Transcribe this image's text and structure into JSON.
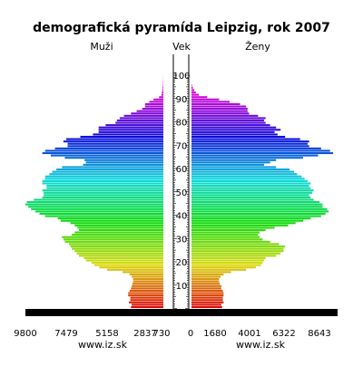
{
  "chart_data": {
    "type": "bar",
    "orientation": "horizontal-population-pyramid",
    "title": "demografická pyramída Leipzig, rok 2007",
    "left_label": "Muži",
    "center_label": "Vek",
    "right_label": "Ženy",
    "age_ticks": [
      "10",
      "20",
      "30",
      "40",
      "50",
      "60",
      "70",
      "80",
      "90",
      "100"
    ],
    "left_ticks": [
      "9800",
      "7479",
      "5158",
      "2837",
      "730"
    ],
    "right_ticks": [
      "0",
      "1680",
      "4001",
      "6322",
      "8643"
    ],
    "left_source": "www.iz.sk",
    "right_source": "www.iz.sk",
    "men_range": [
      0,
      9800
    ],
    "women_range": [
      0,
      9800
    ],
    "ages": [
      0,
      1,
      2,
      3,
      4,
      5,
      6,
      7,
      8,
      9,
      10,
      11,
      12,
      13,
      14,
      15,
      16,
      17,
      18,
      19,
      20,
      21,
      22,
      23,
      24,
      25,
      26,
      27,
      28,
      29,
      30,
      31,
      32,
      33,
      34,
      35,
      36,
      37,
      38,
      39,
      40,
      41,
      42,
      43,
      44,
      45,
      46,
      47,
      48,
      49,
      50,
      51,
      52,
      53,
      54,
      55,
      56,
      57,
      58,
      59,
      60,
      61,
      62,
      63,
      64,
      65,
      66,
      67,
      68,
      69,
      70,
      71,
      72,
      73,
      74,
      75,
      76,
      77,
      78,
      79,
      80,
      81,
      82,
      83,
      84,
      85,
      86,
      87,
      88,
      89,
      90,
      91,
      92,
      93,
      94,
      95,
      96,
      97,
      98,
      99,
      100
    ],
    "series": [
      {
        "name": "Muži",
        "values": [
          2300,
          2250,
          2450,
          2350,
          2350,
          2500,
          2500,
          2400,
          2300,
          2250,
          2200,
          2150,
          2150,
          2250,
          2400,
          2900,
          4000,
          4550,
          4900,
          5100,
          5500,
          5650,
          6000,
          6150,
          6300,
          6500,
          6600,
          6700,
          7000,
          7100,
          7200,
          6500,
          6300,
          6000,
          6100,
          6300,
          6600,
          7300,
          7500,
          8400,
          8800,
          9100,
          9400,
          9600,
          9800,
          9700,
          9200,
          8600,
          8500,
          8500,
          8600,
          8300,
          8300,
          8600,
          8600,
          8400,
          8400,
          8100,
          7900,
          7600,
          7200,
          5700,
          5500,
          5600,
          7000,
          8000,
          8600,
          8400,
          7700,
          6800,
          6800,
          7100,
          6900,
          5900,
          5000,
          4600,
          4600,
          4600,
          4100,
          3400,
          3300,
          3100,
          2800,
          2300,
          1900,
          1500,
          1300,
          1300,
          1000,
          700,
          300,
          140,
          100,
          70,
          50,
          35,
          25,
          15,
          10,
          5,
          3
        ]
      },
      {
        "name": "Ženy",
        "values": [
          2100,
          2050,
          2200,
          2150,
          2150,
          2200,
          2200,
          2150,
          2050,
          2050,
          1950,
          1900,
          1900,
          2000,
          2200,
          2700,
          3700,
          4350,
          4700,
          4800,
          4900,
          5000,
          5700,
          6000,
          6200,
          6200,
          6300,
          5900,
          5300,
          4800,
          4600,
          4500,
          4600,
          5000,
          5600,
          6500,
          7000,
          7500,
          8000,
          8700,
          9000,
          9200,
          9100,
          8800,
          8800,
          8600,
          8200,
          8000,
          7900,
          8100,
          8200,
          8000,
          7900,
          8000,
          7800,
          7600,
          7400,
          7100,
          6900,
          6600,
          5700,
          4900,
          5300,
          5700,
          7500,
          8500,
          9500,
          9300,
          8700,
          7900,
          7800,
          7900,
          7300,
          6300,
          5800,
          5600,
          6000,
          5700,
          5300,
          5000,
          4900,
          5000,
          4500,
          3900,
          3800,
          3800,
          3700,
          3300,
          2600,
          1900,
          1100,
          550,
          350,
          250,
          150,
          100,
          50,
          25,
          15,
          8,
          4
        ]
      }
    ]
  }
}
